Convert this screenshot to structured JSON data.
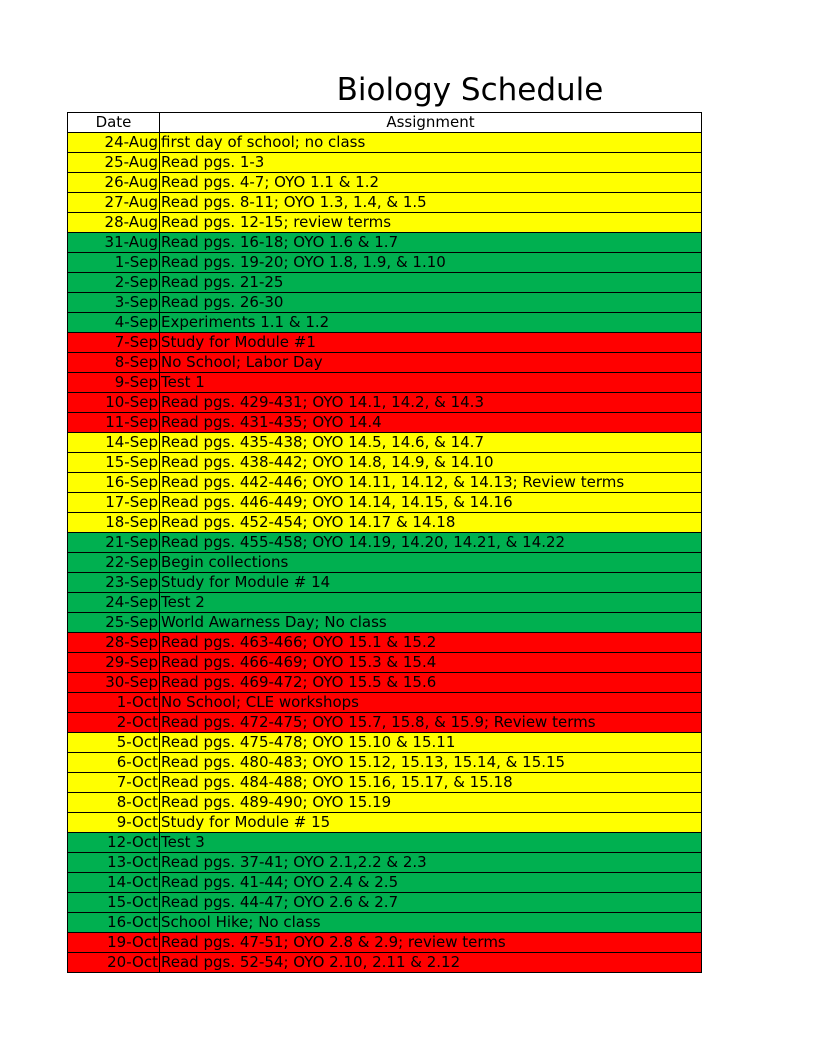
{
  "title": "Biology Schedule",
  "headers": {
    "date": "Date",
    "assignment": "Assignment"
  },
  "colors": {
    "yellow": "#ffff00",
    "green": "#00b050",
    "red": "#ff0000"
  },
  "rows": [
    {
      "date": "24-Aug",
      "assignment": "first day of school; no class",
      "color": "yellow"
    },
    {
      "date": "25-Aug",
      "assignment": "Read pgs. 1-3",
      "color": "yellow"
    },
    {
      "date": "26-Aug",
      "assignment": "Read pgs. 4-7; OYO 1.1 & 1.2",
      "color": "yellow"
    },
    {
      "date": "27-Aug",
      "assignment": "Read pgs. 8-11; OYO 1.3, 1.4, & 1.5",
      "color": "yellow"
    },
    {
      "date": "28-Aug",
      "assignment": "Read pgs. 12-15; review terms",
      "color": "yellow"
    },
    {
      "date": "31-Aug",
      "assignment": "Read pgs. 16-18; OYO 1.6 & 1.7",
      "color": "green"
    },
    {
      "date": "1-Sep",
      "assignment": "Read pgs. 19-20; OYO 1.8, 1.9, & 1.10",
      "color": "green"
    },
    {
      "date": "2-Sep",
      "assignment": "Read pgs. 21-25",
      "color": "green"
    },
    {
      "date": "3-Sep",
      "assignment": "Read pgs. 26-30",
      "color": "green"
    },
    {
      "date": "4-Sep",
      "assignment": "Experiments 1.1 & 1.2",
      "color": "green"
    },
    {
      "date": "7-Sep",
      "assignment": "Study for Module #1",
      "color": "red"
    },
    {
      "date": "8-Sep",
      "assignment": "No School; Labor Day",
      "color": "red"
    },
    {
      "date": "9-Sep",
      "assignment": "Test 1",
      "color": "red"
    },
    {
      "date": "10-Sep",
      "assignment": "Read pgs. 429-431; OYO 14.1, 14.2, & 14.3",
      "color": "red"
    },
    {
      "date": "11-Sep",
      "assignment": "Read pgs. 431-435; OYO 14.4",
      "color": "red"
    },
    {
      "date": "14-Sep",
      "assignment": "Read pgs. 435-438; OYO 14.5, 14.6, & 14.7",
      "color": "yellow"
    },
    {
      "date": "15-Sep",
      "assignment": "Read pgs. 438-442; OYO 14.8, 14.9, & 14.10",
      "color": "yellow"
    },
    {
      "date": "16-Sep",
      "assignment": "Read pgs. 442-446; OYO 14.11, 14.12, & 14.13; Review terms",
      "color": "yellow"
    },
    {
      "date": "17-Sep",
      "assignment": "Read pgs. 446-449; OYO 14.14, 14.15, & 14.16",
      "color": "yellow"
    },
    {
      "date": "18-Sep",
      "assignment": "Read pgs. 452-454; OYO 14.17 & 14.18",
      "color": "yellow"
    },
    {
      "date": "21-Sep",
      "assignment": "Read pgs. 455-458; OYO 14.19, 14.20, 14.21, & 14.22",
      "color": "green"
    },
    {
      "date": "22-Sep",
      "assignment": "Begin collections",
      "color": "green"
    },
    {
      "date": "23-Sep",
      "assignment": "Study for Module # 14",
      "color": "green"
    },
    {
      "date": "24-Sep",
      "assignment": "Test 2",
      "color": "green"
    },
    {
      "date": "25-Sep",
      "assignment": "World Awarness Day; No class",
      "color": "green"
    },
    {
      "date": "28-Sep",
      "assignment": "Read pgs. 463-466; OYO 15.1 & 15.2",
      "color": "red"
    },
    {
      "date": "29-Sep",
      "assignment": "Read pgs. 466-469; OYO 15.3 & 15.4",
      "color": "red"
    },
    {
      "date": "30-Sep",
      "assignment": "Read pgs. 469-472; OYO 15.5 & 15.6",
      "color": "red"
    },
    {
      "date": "1-Oct",
      "assignment": "No School; CLE workshops",
      "color": "red"
    },
    {
      "date": "2-Oct",
      "assignment": "Read pgs. 472-475; OYO 15.7, 15.8, & 15.9; Review terms",
      "color": "red"
    },
    {
      "date": "5-Oct",
      "assignment": "Read pgs. 475-478; OYO 15.10 & 15.11",
      "color": "yellow"
    },
    {
      "date": "6-Oct",
      "assignment": "Read pgs. 480-483; OYO 15.12, 15.13, 15.14, & 15.15",
      "color": "yellow"
    },
    {
      "date": "7-Oct",
      "assignment": "Read pgs. 484-488; OYO 15.16, 15.17, & 15.18",
      "color": "yellow"
    },
    {
      "date": "8-Oct",
      "assignment": "Read pgs. 489-490; OYO 15.19",
      "color": "yellow"
    },
    {
      "date": "9-Oct",
      "assignment": "Study for Module # 15",
      "color": "yellow"
    },
    {
      "date": "12-Oct",
      "assignment": "Test 3",
      "color": "green"
    },
    {
      "date": "13-Oct",
      "assignment": "Read pgs. 37-41; OYO 2.1,2.2 & 2.3",
      "color": "green"
    },
    {
      "date": "14-Oct",
      "assignment": "Read pgs. 41-44; OYO 2.4 & 2.5",
      "color": "green"
    },
    {
      "date": "15-Oct",
      "assignment": "Read pgs. 44-47; OYO 2.6 & 2.7",
      "color": "green"
    },
    {
      "date": "16-Oct",
      "assignment": "School Hike; No class",
      "color": "green"
    },
    {
      "date": "19-Oct",
      "assignment": "Read pgs. 47-51; OYO 2.8 & 2.9; review terms",
      "color": "red"
    },
    {
      "date": "20-Oct",
      "assignment": "Read pgs. 52-54; OYO 2.10, 2.11 & 2.12",
      "color": "red"
    }
  ]
}
